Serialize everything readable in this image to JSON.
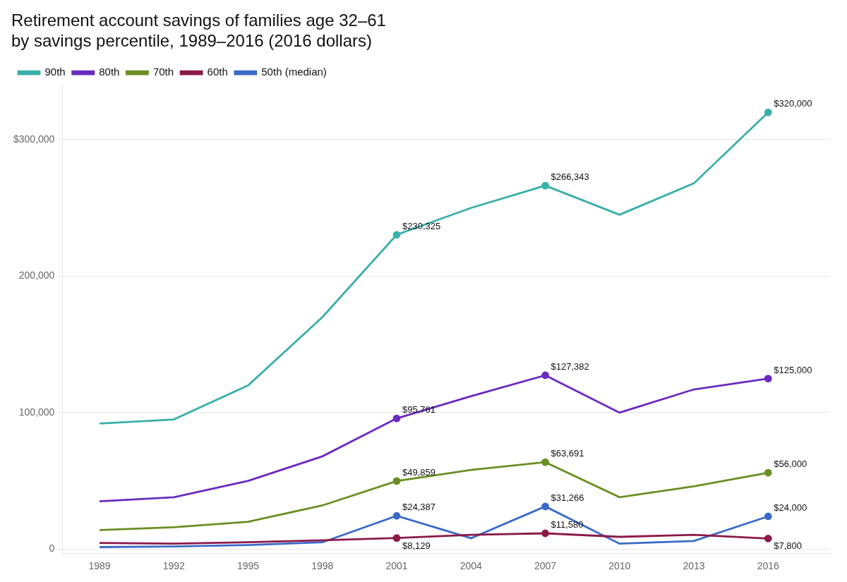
{
  "chart_data": {
    "type": "line",
    "title": "Retirement account savings of families age 32–61\nby savings percentile, 1989–2016 (2016 dollars)",
    "x": [
      1989,
      1992,
      1995,
      1998,
      2001,
      2004,
      2007,
      2010,
      2013,
      2016
    ],
    "series": [
      {
        "name": "90th",
        "color": "#3aafa9",
        "values": [
          92000,
          95000,
          120000,
          170000,
          230325,
          250000,
          266343,
          245000,
          268000,
          320000
        ]
      },
      {
        "name": "80th",
        "color": "#6a2bc0",
        "values": [
          35000,
          38000,
          50000,
          68000,
          95761,
          112000,
          127382,
          100000,
          117000,
          125000
        ]
      },
      {
        "name": "70th",
        "color": "#6b8e23",
        "values": [
          14000,
          16000,
          20000,
          32000,
          49859,
          58000,
          63691,
          38000,
          46000,
          56000
        ]
      },
      {
        "name": "60th",
        "color": "#8b1a4a",
        "values": [
          4500,
          4000,
          5000,
          6500,
          8129,
          10500,
          11580,
          9000,
          10500,
          7800
        ]
      },
      {
        "name": "50th (median)",
        "color": "#3a6bc8",
        "values": [
          1500,
          2000,
          3000,
          5000,
          24387,
          8000,
          31266,
          4000,
          6000,
          24000
        ]
      }
    ],
    "annotations": [
      {
        "series": "90th",
        "x": 2001,
        "y": 230325,
        "text": "$230,325"
      },
      {
        "series": "90th",
        "x": 2007,
        "y": 266343,
        "text": "$266,343"
      },
      {
        "series": "90th",
        "x": 2016,
        "y": 320000,
        "text": "$320,000"
      },
      {
        "series": "80th",
        "x": 2001,
        "y": 95761,
        "text": "$95,761"
      },
      {
        "series": "80th",
        "x": 2007,
        "y": 127382,
        "text": "$127,382"
      },
      {
        "series": "80th",
        "x": 2016,
        "y": 125000,
        "text": "$125,000"
      },
      {
        "series": "70th",
        "x": 2001,
        "y": 49859,
        "text": "$49,859"
      },
      {
        "series": "70th",
        "x": 2007,
        "y": 63691,
        "text": "$63,691"
      },
      {
        "series": "70th",
        "x": 2016,
        "y": 56000,
        "text": "$56,000"
      },
      {
        "series": "60th",
        "x": 2001,
        "y": 8129,
        "text": "$8,129"
      },
      {
        "series": "60th",
        "x": 2007,
        "y": 11580,
        "text": "$11,580"
      },
      {
        "series": "60th",
        "x": 2016,
        "y": 7800,
        "text": "$7,800"
      },
      {
        "series": "50th (median)",
        "x": 2001,
        "y": 24387,
        "text": "$24,387"
      },
      {
        "series": "50th (median)",
        "x": 2007,
        "y": 31266,
        "text": "$31,266"
      },
      {
        "series": "50th (median)",
        "x": 2016,
        "y": 24000,
        "text": "$24,000"
      }
    ],
    "xlim": [
      1987.5,
      2018.5
    ],
    "xticks": [
      1989,
      1992,
      1995,
      1998,
      2001,
      2004,
      2007,
      2010,
      2013,
      2016
    ],
    "ylim": [
      -3000,
      340000
    ],
    "yticks": [
      0,
      {
        "value": 100000,
        "label": "100,000"
      },
      {
        "value": 200000,
        "label": "200,000"
      },
      {
        "value": 300000,
        "label": "$300,000"
      }
    ],
    "grid": "y",
    "legend": "top"
  }
}
